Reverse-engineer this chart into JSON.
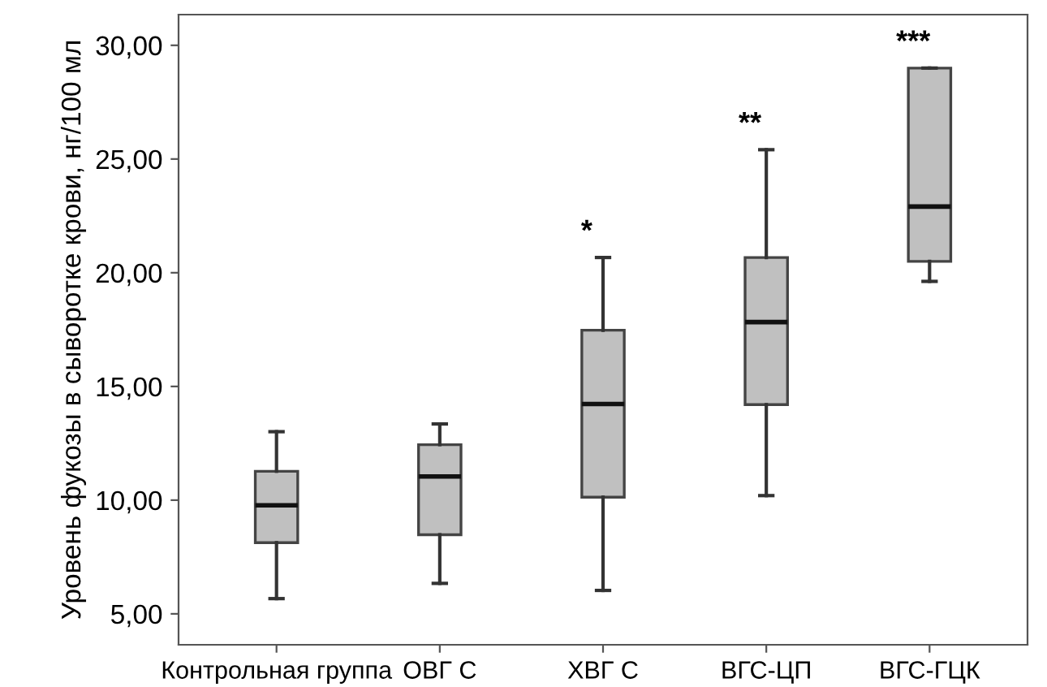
{
  "chart_data": {
    "type": "box",
    "ylabel": "Уровень фукозы в сыворотке крови, нг/100 мл",
    "categories": [
      "Контрольная группа",
      "ОВГ С",
      "ХВГ С",
      "ВГС-ЦП",
      "ВГС-ГЦК"
    ],
    "color": "#c0c0c0",
    "boxes": [
      {
        "low": 5.67,
        "q1": 8.13,
        "median": 9.77,
        "q3": 11.27,
        "high": 13.01
      },
      {
        "low": 6.34,
        "q1": 8.48,
        "median": 11.04,
        "q3": 12.44,
        "high": 13.35
      },
      {
        "low": 6.03,
        "q1": 10.13,
        "median": 14.23,
        "q3": 17.47,
        "high": 20.67
      },
      {
        "low": 10.2,
        "q1": 14.2,
        "median": 17.83,
        "q3": 20.67,
        "high": 25.41
      },
      {
        "low": 19.62,
        "q1": 20.5,
        "median": 22.91,
        "q3": 29.0,
        "high": 29.0
      }
    ],
    "annotations": [
      "*",
      "**",
      "***"
    ],
    "ylim": [
      3.64,
      31.35
    ],
    "yticks": [
      {
        "value": 5,
        "label": "5,00"
      },
      {
        "value": 10,
        "label": "10,00"
      },
      {
        "value": 15,
        "label": "15,00"
      },
      {
        "value": 20,
        "label": "20,00"
      },
      {
        "value": 25,
        "label": "25,00"
      },
      {
        "value": 30,
        "label": "30,00"
      }
    ],
    "grid": false
  }
}
